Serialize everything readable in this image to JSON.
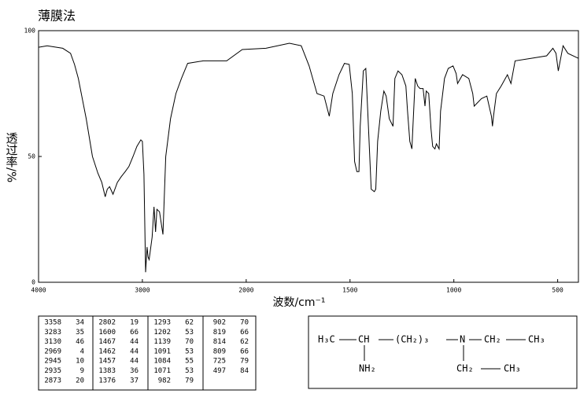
{
  "chart_data": {
    "type": "line",
    "title": "薄膜法",
    "y_label": "透过率/%",
    "x_label": "波数/cm⁻¹",
    "color": "#000000",
    "xlim": [
      4000,
      400
    ],
    "xticks": [
      4000,
      3000,
      2000,
      1500,
      1000,
      500
    ],
    "ylim": [
      0,
      100
    ],
    "yticks": [
      0,
      50,
      100
    ],
    "x": [
      4000,
      3917,
      3767,
      3692,
      3654,
      3617,
      3541,
      3481,
      3429,
      3391,
      3358,
      3338,
      3316,
      3283,
      3241,
      3203,
      3165,
      3130,
      3090,
      3053,
      3015,
      3000,
      2985,
      2969,
      2955,
      2945,
      2935,
      2906,
      2888,
      2873,
      2860,
      2835,
      2802,
      2775,
      2729,
      2677,
      2624,
      2564,
      2414,
      2188,
      2038,
      1905,
      1792,
      1735,
      1697,
      1659,
      1625,
      1600,
      1583,
      1553,
      1527,
      1504,
      1489,
      1478,
      1467,
      1462,
      1457,
      1451,
      1436,
      1424,
      1413,
      1398,
      1383,
      1376,
      1367,
      1352,
      1337,
      1326,
      1311,
      1293,
      1284,
      1269,
      1250,
      1231,
      1223,
      1212,
      1202,
      1197,
      1186,
      1174,
      1163,
      1148,
      1139,
      1133,
      1121,
      1110,
      1102,
      1091,
      1084,
      1071,
      1064,
      1045,
      1027,
      1004,
      989,
      982,
      958,
      928,
      909,
      902,
      867,
      841,
      819,
      814,
      809,
      795,
      772,
      742,
      725,
      705,
      629,
      553,
      523,
      508,
      497,
      474,
      451,
      400
    ],
    "values": [
      93.4,
      94,
      93,
      91,
      86.6,
      81,
      65,
      50,
      43.4,
      39.7,
      34,
      37,
      38,
      35,
      39.7,
      42,
      44,
      46,
      50,
      54,
      56.6,
      56,
      43,
      4,
      14,
      10,
      9,
      18,
      30,
      20,
      29,
      28,
      19,
      50,
      65,
      75,
      81,
      87,
      88,
      88,
      92.5,
      93,
      95,
      94,
      86,
      75,
      74,
      66,
      75,
      82.5,
      87,
      86.6,
      75,
      48,
      44,
      44,
      44,
      62,
      84,
      85,
      65,
      37,
      36,
      37,
      56,
      68,
      76,
      74,
      65,
      62,
      81,
      84,
      82.5,
      78,
      68,
      56,
      53,
      62,
      81,
      78,
      77,
      77,
      70,
      76,
      75,
      61,
      54,
      53,
      55,
      53,
      68,
      81,
      85,
      86,
      83,
      79,
      82.5,
      81,
      75,
      70,
      73,
      74,
      66,
      62,
      66,
      75,
      78,
      82.5,
      79,
      88,
      89,
      90,
      93,
      91,
      84,
      94,
      91,
      89
    ]
  },
  "peak_table": [
    [
      [
        3358,
        34
      ],
      [
        3283,
        35
      ],
      [
        3130,
        46
      ],
      [
        2969,
        4
      ],
      [
        2945,
        10
      ],
      [
        2935,
        9
      ],
      [
        2873,
        20
      ]
    ],
    [
      [
        2802,
        19
      ],
      [
        1600,
        66
      ],
      [
        1467,
        44
      ],
      [
        1462,
        44
      ],
      [
        1457,
        44
      ],
      [
        1383,
        36
      ],
      [
        1376,
        37
      ]
    ],
    [
      [
        1293,
        62
      ],
      [
        1202,
        53
      ],
      [
        1139,
        70
      ],
      [
        1091,
        53
      ],
      [
        1084,
        55
      ],
      [
        1071,
        53
      ],
      [
        982,
        79
      ]
    ],
    [
      [
        902,
        70
      ],
      [
        819,
        66
      ],
      [
        814,
        62
      ],
      [
        809,
        66
      ],
      [
        725,
        79
      ],
      [
        497,
        84
      ]
    ]
  ],
  "structure": {
    "labels": [
      "H₃C",
      "CH",
      "(CH₂)₃",
      "N",
      "CH₂",
      "CH₃",
      "NH₂",
      "CH₂",
      "CH₃"
    ]
  }
}
